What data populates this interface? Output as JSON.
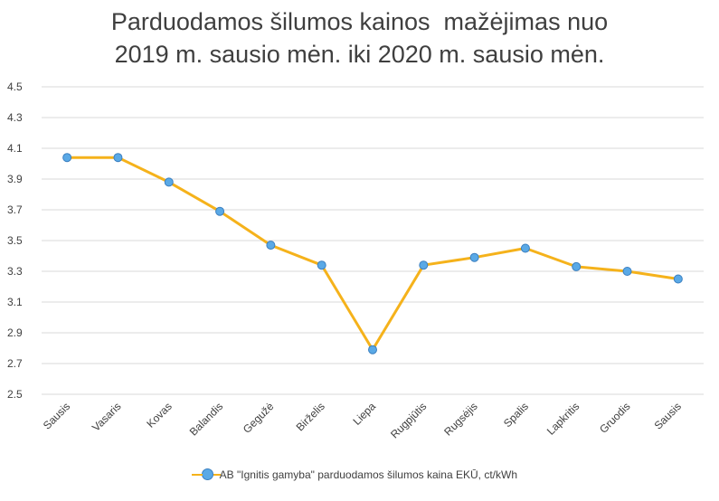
{
  "chart_data": {
    "type": "line",
    "title_lines": [
      "Parduodamos šilumos kainos  mažėjimas nuo",
      "2019 m. sausio mėn. iki 2020 m. sausio mėn."
    ],
    "categories": [
      "Sausis",
      "Vasaris",
      "Kovas",
      "Balandis",
      "Gegužė",
      "Birželis",
      "Liepa",
      "Rugpjūtis",
      "Rugsėjis",
      "Spalis",
      "Lapkritis",
      "Gruodis",
      "Sausis"
    ],
    "series": [
      {
        "name": "AB \"Ignitis gamyba\" parduodamos šilumos kaina EKŪ, ct/kWh",
        "values": [
          4.04,
          4.04,
          3.88,
          3.69,
          3.47,
          3.34,
          2.79,
          3.34,
          3.39,
          3.45,
          3.33,
          3.3,
          3.25
        ]
      }
    ],
    "ylim": [
      2.5,
      4.5
    ],
    "yticks": [
      "2.5",
      "2.7",
      "2.9",
      "3.1",
      "3.3",
      "3.5",
      "3.7",
      "3.9",
      "4.1",
      "4.3",
      "4.5"
    ],
    "grid": true,
    "legend_position": "bottom",
    "colors": {
      "line": "#f5b21b",
      "marker_fill": "#5aa9e6",
      "marker_stroke": "#3b7fc0",
      "grid": "#d9d9d9"
    }
  }
}
